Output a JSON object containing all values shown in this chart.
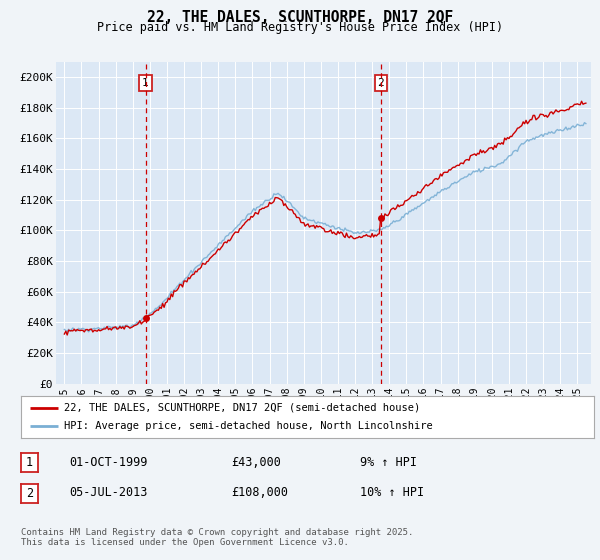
{
  "title": "22, THE DALES, SCUNTHORPE, DN17 2QF",
  "subtitle": "Price paid vs. HM Land Registry's House Price Index (HPI)",
  "legend_line1": "22, THE DALES, SCUNTHORPE, DN17 2QF (semi-detached house)",
  "legend_line2": "HPI: Average price, semi-detached house, North Lincolnshire",
  "annotation1_label": "1",
  "annotation1_date": "01-OCT-1999",
  "annotation1_price": "£43,000",
  "annotation1_hpi": "9% ↑ HPI",
  "annotation1_year": 1999.75,
  "annotation1_value": 43000,
  "annotation2_label": "2",
  "annotation2_date": "05-JUL-2013",
  "annotation2_price": "£108,000",
  "annotation2_hpi": "10% ↑ HPI",
  "annotation2_year": 2013.5,
  "annotation2_value": 108000,
  "ylim": [
    0,
    210000
  ],
  "yticks": [
    0,
    20000,
    40000,
    60000,
    80000,
    100000,
    120000,
    140000,
    160000,
    180000,
    200000
  ],
  "ytick_labels": [
    "£0",
    "£20K",
    "£40K",
    "£60K",
    "£80K",
    "£100K",
    "£120K",
    "£140K",
    "£160K",
    "£180K",
    "£200K"
  ],
  "xmin": 1994.5,
  "xmax": 2025.8,
  "line_color_red": "#cc0000",
  "line_color_blue": "#7aafd4",
  "dashed_vline_color": "#cc0000",
  "bg_color": "#f0f4f8",
  "plot_bg_color": "#dce8f5",
  "footer": "Contains HM Land Registry data © Crown copyright and database right 2025.\nThis data is licensed under the Open Government Licence v3.0.",
  "xtick_years": [
    1995,
    1996,
    1997,
    1998,
    1999,
    2000,
    2001,
    2002,
    2003,
    2004,
    2005,
    2006,
    2007,
    2008,
    2009,
    2010,
    2011,
    2012,
    2013,
    2014,
    2015,
    2016,
    2017,
    2018,
    2019,
    2020,
    2021,
    2022,
    2023,
    2024,
    2025
  ]
}
